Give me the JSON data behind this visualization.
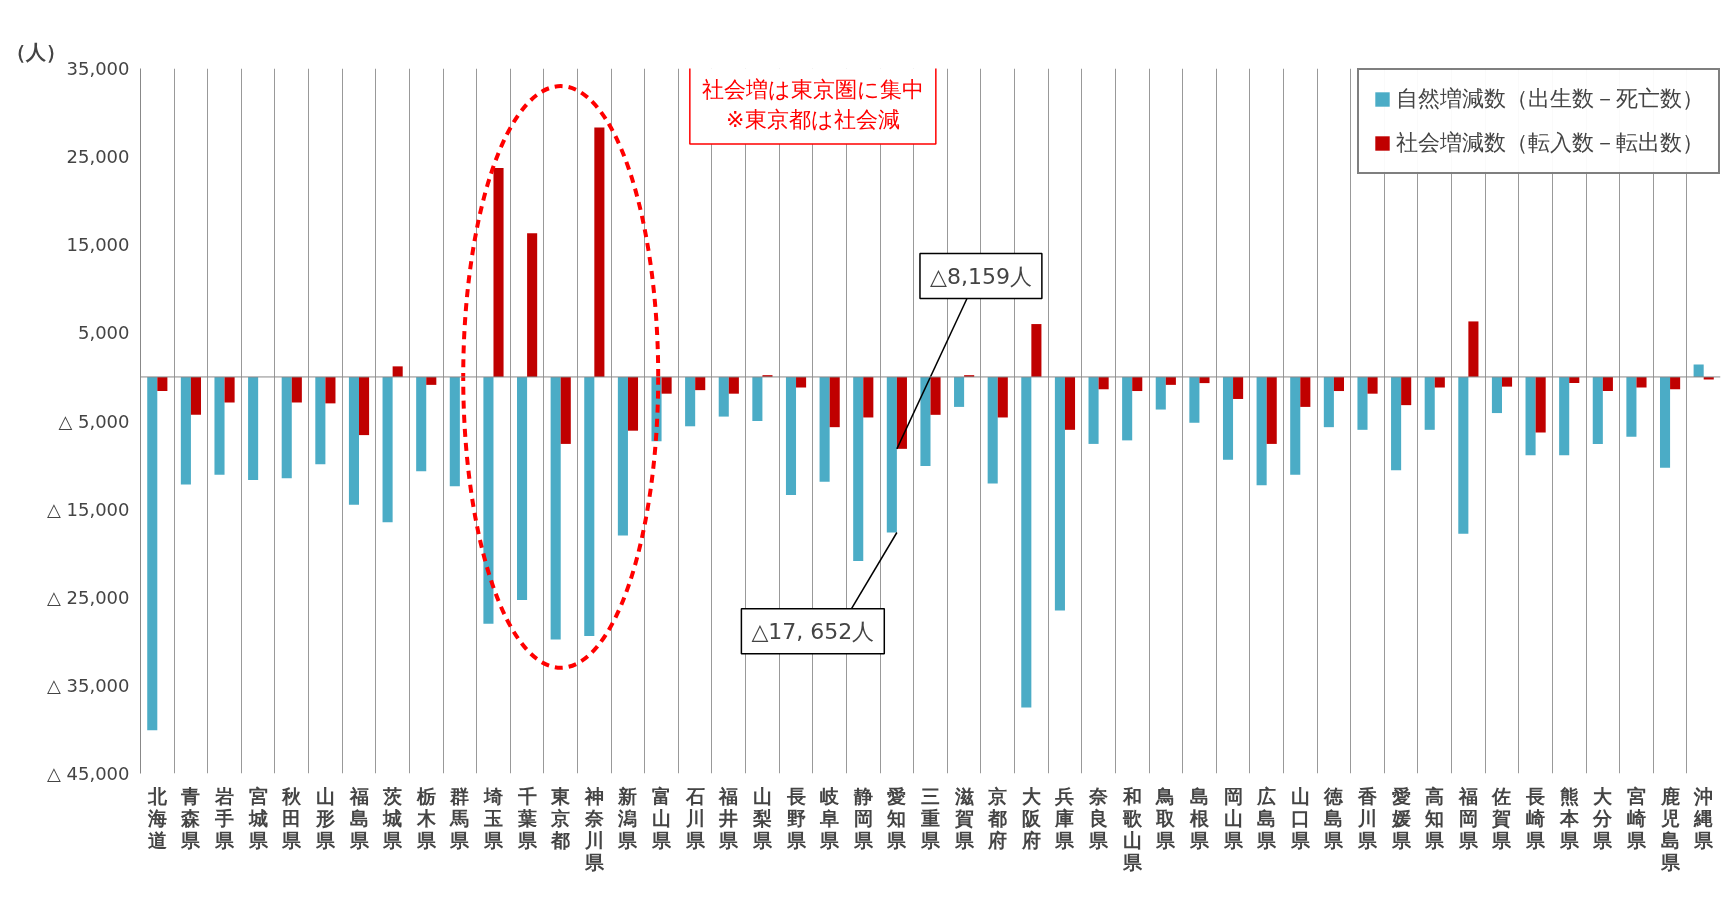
{
  "chart_data": {
    "type": "bar",
    "ylabel": "（人）",
    "categories": [
      "北海道",
      "青森県",
      "岩手県",
      "宮城県",
      "秋田県",
      "山形県",
      "福島県",
      "茨城県",
      "栃木県",
      "群馬県",
      "埼玉県",
      "千葉県",
      "東京都",
      "神奈川県",
      "新潟県",
      "富山県",
      "石川県",
      "福井県",
      "山梨県",
      "長野県",
      "岐阜県",
      "静岡県",
      "愛知県",
      "三重県",
      "滋賀県",
      "京都府",
      "大阪府",
      "兵庫県",
      "奈良県",
      "和歌山県",
      "鳥取県",
      "島根県",
      "岡山県",
      "広島県",
      "山口県",
      "徳島県",
      "香川県",
      "愛媛県",
      "高知県",
      "福岡県",
      "佐賀県",
      "長崎県",
      "熊本県",
      "大分県",
      "宮崎県",
      "鹿児島県",
      "沖縄県"
    ],
    "series": [
      {
        "name": "自然増減数（出生数－死亡数）",
        "color": "#4bacc6",
        "values": [
          -40100,
          -12200,
          -11100,
          -11700,
          -11500,
          -9900,
          -14500,
          -16500,
          -10700,
          -12400,
          -28000,
          -25300,
          -29800,
          -29400,
          -18000,
          -7300,
          -5600,
          -4500,
          -5000,
          -13400,
          -11900,
          -20900,
          -17652,
          -10100,
          -3400,
          -12100,
          -37500,
          -26500,
          -7600,
          -7200,
          -3700,
          -5200,
          -9400,
          -12300,
          -11100,
          -5700,
          -6000,
          -10600,
          -6000,
          -17800,
          -4100,
          -8900,
          -8900,
          -7600,
          -6800,
          -10300,
          1400
        ]
      },
      {
        "name": "社会増減数（転入数－転出数）",
        "color": "#c00000",
        "values": [
          -1600,
          -4300,
          -2900,
          0,
          -2900,
          -3000,
          -6600,
          1200,
          -900,
          0,
          23700,
          16300,
          -7600,
          28300,
          -6100,
          -1900,
          -1500,
          -1900,
          200,
          -1200,
          -5700,
          -4600,
          -8159,
          -4300,
          200,
          -4600,
          6000,
          -6000,
          -1400,
          -1600,
          -900,
          -700,
          -2500,
          -7600,
          -3400,
          -1600,
          -1900,
          -3200,
          -1200,
          6300,
          -1100,
          -6300,
          -700,
          -1600,
          -1200,
          -1400,
          -300
        ]
      }
    ],
    "ylim": [
      -45000,
      35000
    ],
    "yticks": [
      {
        "value": 35000,
        "label": "35,000"
      },
      {
        "value": 25000,
        "label": "25,000"
      },
      {
        "value": 15000,
        "label": "15,000"
      },
      {
        "value": 5000,
        "label": "5,000"
      },
      {
        "value": -5000,
        "label": "△ 5,000"
      },
      {
        "value": -15000,
        "label": "△ 15,000"
      },
      {
        "value": -25000,
        "label": "△ 25,000"
      },
      {
        "value": -35000,
        "label": "△ 35,000"
      },
      {
        "value": -45000,
        "label": "△ 45,000"
      }
    ],
    "grid": "x",
    "legend": "top right",
    "annotations": [
      "社会増は東京圏に集中\n※東京都は社会減",
      {
        "text": "△8,159人",
        "x": "愛知県",
        "y": -8159
      },
      {
        "text": "△17, 652人",
        "x": "愛知県",
        "y": -17652
      }
    ]
  }
}
